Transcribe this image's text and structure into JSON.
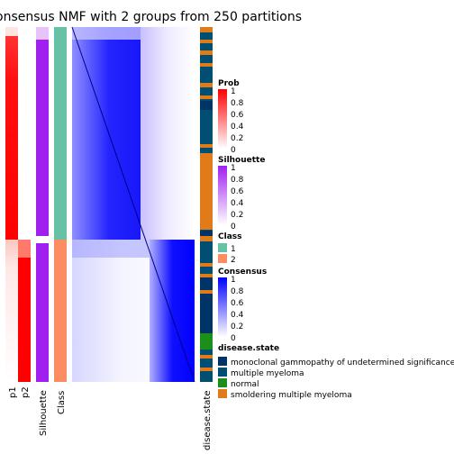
{
  "chart_data": {
    "type": "heatmap",
    "title": "onsensus NMF with 2 groups from 250 partitions",
    "columns": {
      "p1": "p1",
      "p2": "p2",
      "silhouette": "Silhouette",
      "class": "Class",
      "disease_state": "disease.state"
    },
    "groups": [
      {
        "class": "1",
        "fraction": 0.546
      },
      {
        "class": "2",
        "fraction": 0.454
      }
    ],
    "legends": {
      "prob": {
        "title": "Prob",
        "ticks": [
          "1",
          "0.8",
          "0.6",
          "0.4",
          "0.2",
          "0"
        ],
        "low": "#ffffff",
        "high": "#ff0000"
      },
      "silhouette": {
        "title": "Silhouette",
        "ticks": [
          "1",
          "0.8",
          "0.6",
          "0.4",
          "0.2",
          "0"
        ],
        "low": "#ffffff",
        "high": "#a020f0"
      },
      "class": {
        "title": "Class",
        "items": [
          {
            "label": "1",
            "color": "#66c2a5"
          },
          {
            "label": "2",
            "color": "#fc8d62"
          }
        ]
      },
      "consensus": {
        "title": "Consensus",
        "ticks": [
          "1",
          "0.8",
          "0.6",
          "0.4",
          "0.2",
          "0"
        ],
        "low": "#ffffff",
        "high": "#0000ff"
      },
      "disease_state": {
        "title": "disease.state",
        "items": [
          {
            "label": "monoclonal gammopathy of undetermined significance",
            "color": "#003366"
          },
          {
            "label": "multiple myeloma",
            "color": "#004f73"
          },
          {
            "label": "normal",
            "color": "#1a8f1a"
          },
          {
            "label": "smoldering multiple myeloma",
            "color": "#e07b1a"
          }
        ]
      }
    }
  }
}
